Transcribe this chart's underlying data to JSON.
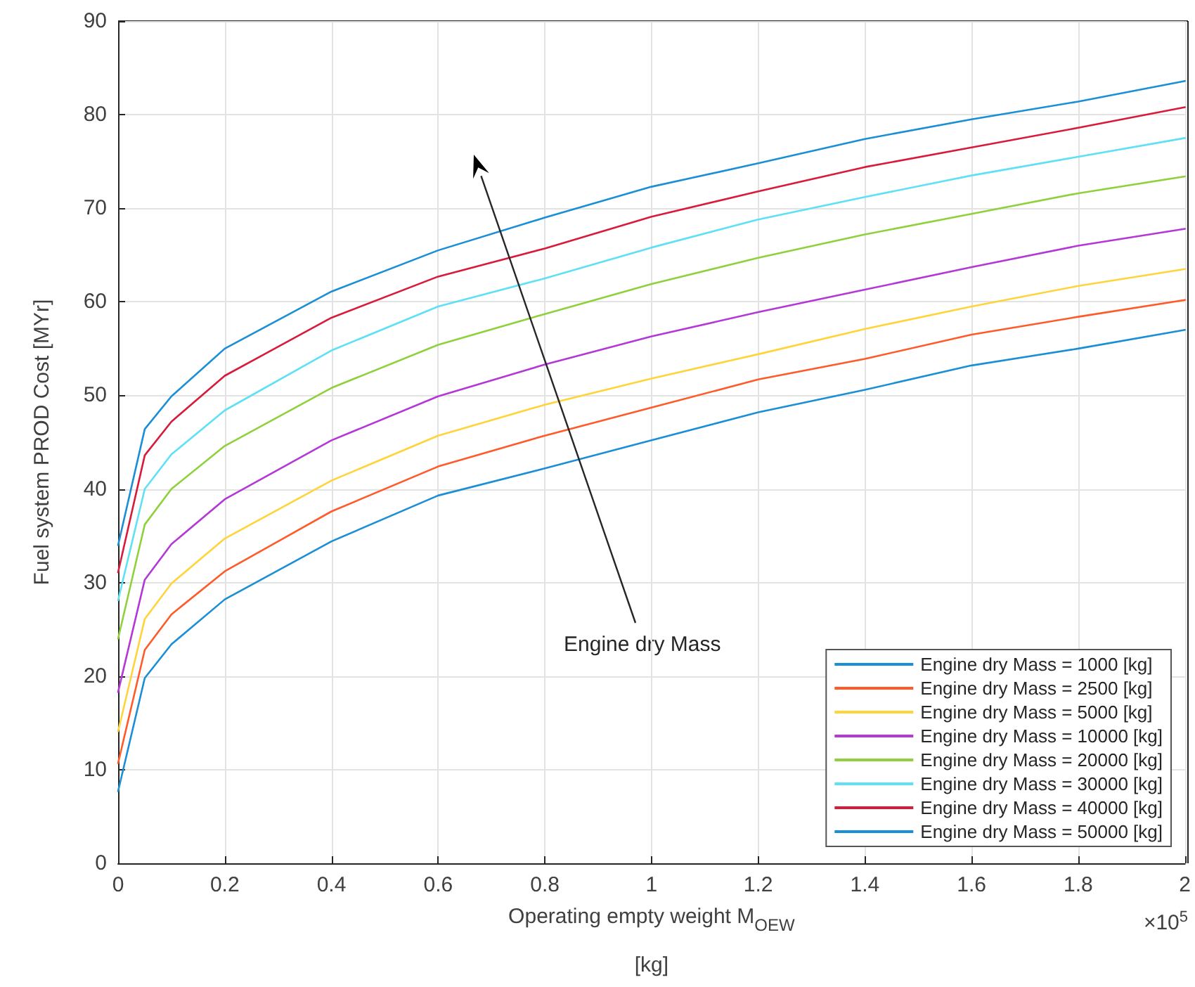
{
  "chart_data": {
    "type": "line",
    "xlabel": "Operating empty weight M$_{OEW}$ [kg]",
    "ylabel": "Fuel system PROD Cost [MYr]",
    "x": [
      0,
      0.05,
      0.1,
      0.2,
      0.4,
      0.6,
      0.8,
      1,
      1.2,
      1.4,
      1.6,
      1.8,
      2
    ],
    "series": [
      {
        "name": "Engine dry Mass = 1000 [kg]",
        "color": "#1a8fd6",
        "values": [
          7.7,
          19.8,
          23.4,
          28.2,
          34.4,
          39.3,
          42.2,
          45.2,
          48.2,
          50.6,
          53.2,
          55.0,
          57.0
        ]
      },
      {
        "name": "Engine dry Mass = 2500 [kg]",
        "color": "#ff5a2a",
        "values": [
          10.7,
          22.8,
          26.6,
          31.2,
          37.6,
          42.4,
          45.7,
          48.7,
          51.7,
          53.9,
          56.5,
          58.4,
          60.2
        ]
      },
      {
        "name": "Engine dry Mass = 5000 [kg]",
        "color": "#ffd43b",
        "values": [
          14.1,
          26.1,
          29.9,
          34.7,
          40.9,
          45.7,
          49.0,
          51.8,
          54.4,
          57.1,
          59.5,
          61.7,
          63.5
        ]
      },
      {
        "name": "Engine dry Mass = 10000 [kg]",
        "color": "#b438d6",
        "values": [
          18.3,
          30.3,
          34.1,
          38.9,
          45.2,
          49.9,
          53.3,
          56.3,
          58.9,
          61.3,
          63.7,
          66.0,
          67.8
        ]
      },
      {
        "name": "Engine dry Mass = 20000 [kg]",
        "color": "#8fd13c",
        "values": [
          24.0,
          36.2,
          40.0,
          44.6,
          50.8,
          55.4,
          58.7,
          61.9,
          64.7,
          67.2,
          69.4,
          71.6,
          73.4
        ]
      },
      {
        "name": "Engine dry Mass = 30000 [kg]",
        "color": "#5ee0f5",
        "values": [
          28.1,
          40.0,
          43.7,
          48.4,
          54.8,
          59.5,
          62.5,
          65.8,
          68.8,
          71.2,
          73.5,
          75.5,
          77.5
        ]
      },
      {
        "name": "Engine dry Mass = 40000 [kg]",
        "color": "#d81b3b",
        "values": [
          31.1,
          43.6,
          47.2,
          52.1,
          58.3,
          62.7,
          65.7,
          69.1,
          71.8,
          74.4,
          76.5,
          78.6,
          80.8
        ]
      },
      {
        "name": "Engine dry Mass = 50000 [kg]",
        "color": "#1a8fd6",
        "values": [
          34.0,
          46.4,
          49.9,
          55.0,
          61.1,
          65.5,
          69.0,
          72.3,
          74.8,
          77.4,
          79.5,
          81.4,
          83.6
        ]
      }
    ],
    "xlim": [
      0,
      2
    ],
    "xticks": [
      0,
      0.2,
      0.4,
      0.6,
      0.8,
      1,
      1.2,
      1.4,
      1.6,
      1.8,
      2
    ],
    "ylim": [
      0,
      90
    ],
    "yticks": [
      0,
      10,
      20,
      30,
      40,
      50,
      60,
      70,
      80,
      90
    ],
    "grid": true,
    "legend": "bottom right",
    "marker": "none",
    "line_style": "solid",
    "annotations": [
      "Engine dry Mass",
      "×10$^{5}$"
    ]
  }
}
